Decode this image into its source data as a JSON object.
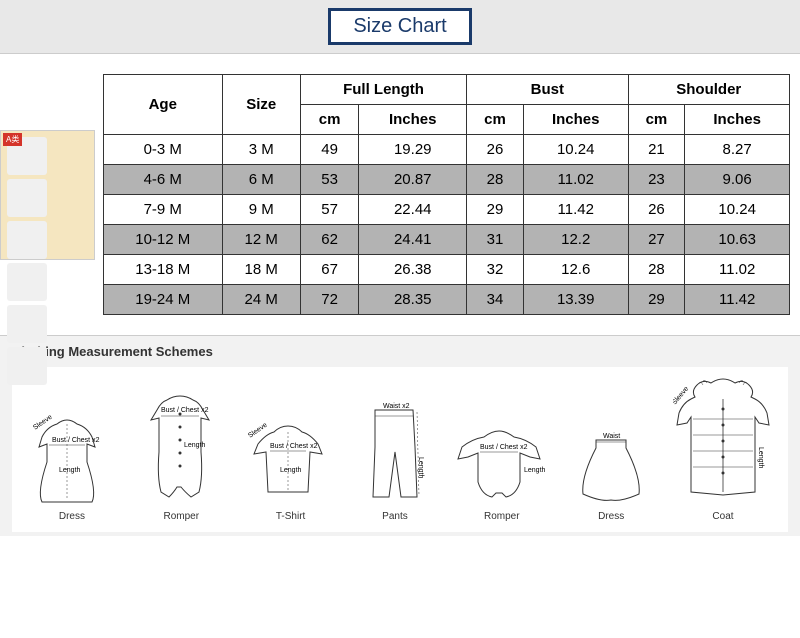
{
  "title": "Size Chart",
  "schemes_title": "Clothing Measurement Schemes",
  "headers": {
    "age": "Age",
    "size": "Size",
    "full_length": "Full Length",
    "bust": "Bust",
    "shoulder": "Shoulder",
    "cm": "cm",
    "inches": "Inches"
  },
  "rows": [
    {
      "age": "0-3 M",
      "size": "3 M",
      "fl_cm": "49",
      "fl_in": "19.29",
      "b_cm": "26",
      "b_in": "10.24",
      "s_cm": "21",
      "s_in": "8.27",
      "alt": false
    },
    {
      "age": "4-6 M",
      "size": "6 M",
      "fl_cm": "53",
      "fl_in": "20.87",
      "b_cm": "28",
      "b_in": "11.02",
      "s_cm": "23",
      "s_in": "9.06",
      "alt": true
    },
    {
      "age": "7-9 M",
      "size": "9 M",
      "fl_cm": "57",
      "fl_in": "22.44",
      "b_cm": "29",
      "b_in": "11.42",
      "s_cm": "26",
      "s_in": "10.24",
      "alt": false
    },
    {
      "age": "10-12 M",
      "size": "12 M",
      "fl_cm": "62",
      "fl_in": "24.41",
      "b_cm": "31",
      "b_in": "12.2",
      "s_cm": "27",
      "s_in": "10.63",
      "alt": true
    },
    {
      "age": "13-18 M",
      "size": "18 M",
      "fl_cm": "67",
      "fl_in": "26.38",
      "b_cm": "32",
      "b_in": "12.6",
      "s_cm": "28",
      "s_in": "11.02",
      "alt": false
    },
    {
      "age": "19-24 M",
      "size": "24 M",
      "fl_cm": "72",
      "fl_in": "28.35",
      "b_cm": "34",
      "b_in": "13.39",
      "s_cm": "29",
      "s_in": "11.42",
      "alt": true
    }
  ],
  "schemes": [
    {
      "label": "Dress"
    },
    {
      "label": "Romper"
    },
    {
      "label": "T-Shirt"
    },
    {
      "label": "Pants"
    },
    {
      "label": "Romper"
    },
    {
      "label": "Dress"
    },
    {
      "label": "Coat"
    }
  ],
  "scheme_annotations": {
    "sleeve": "Sleeve",
    "bust_chest": "Bust / Chest x2",
    "length": "Length",
    "waist": "Waist x2",
    "waist_single": "Waist"
  },
  "colors": {
    "title_border": "#1a3a6a",
    "alt_row": "#b3b3b3",
    "border": "#333333",
    "schemes_bg": "#f2f2f2"
  }
}
